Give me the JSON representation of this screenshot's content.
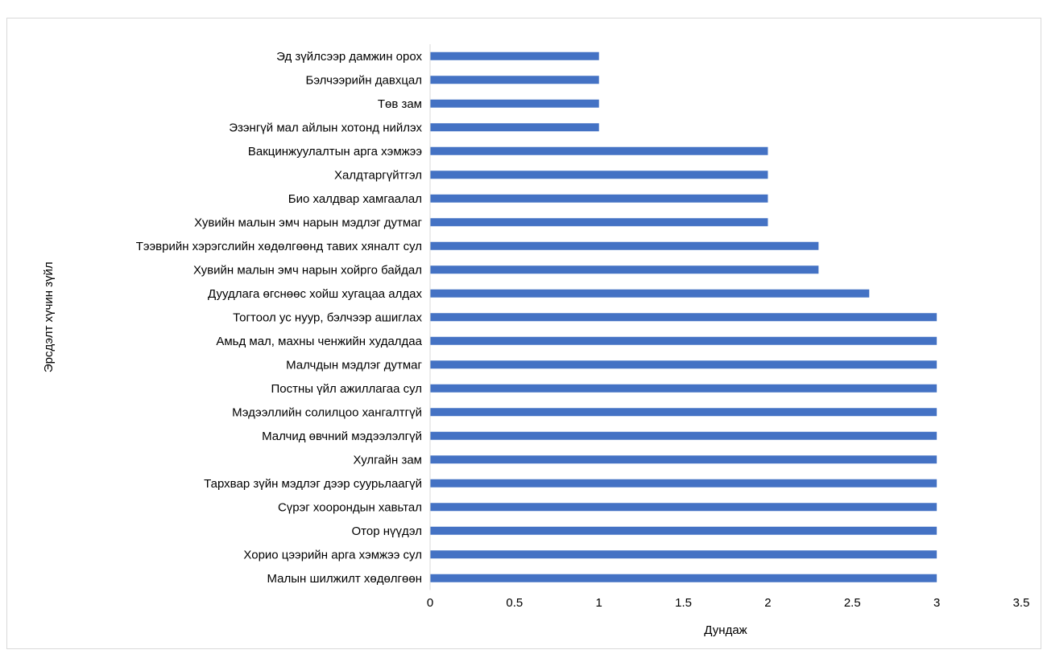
{
  "chart_data": {
    "type": "bar",
    "orientation": "horizontal",
    "title": "",
    "xlabel": "Дундаж",
    "ylabel": "Эрсдэлт хүчин зүйл",
    "xlim": [
      0,
      3.5
    ],
    "x_ticks": [
      "0",
      "0.5",
      "1",
      "1.5",
      "2",
      "2.5",
      "3",
      "3.5"
    ],
    "grid": false,
    "legend": "none",
    "bar_color": "#4472c4",
    "categories": [
      "Малын шилжилт хөдөлгөөн",
      "Хорио цээрийн арга хэмжээ сул",
      "Отор нүүдэл",
      "Сүрэг хоорондын хавьтал",
      "Тархвар зүйн мэдлэг дээр суурьлаагүй",
      "Хулгайн зам",
      "Малчид өвчний мэдээлэлгүй",
      "Мэдээллийн солилцоо хангалтгүй",
      "Постны үйл ажиллагаа сул",
      "Малчдын мэдлэг дутмаг",
      "Амьд мал, махны ченжийн худалдаа",
      "Тогтоол ус нуур, бэлчээр ашиглах",
      "Дуудлага өгснөөс хойш хугацаа алдах",
      "Хувийн малын эмч нарын хойрго байдал",
      "Тээврийн хэрэгслийн хөдөлгөөнд тавих хяналт сул",
      "Хувийн малын эмч нарын мэдлэг дутмаг",
      "Био халдвар хамгаалал",
      "Халдтаргүйтгэл",
      "Вакцинжуулалтын арга хэмжээ",
      "Эзэнгүй мал айлын хотонд нийлэх",
      "Төв зам",
      "Бэлчээрийн давхцал",
      "Эд зүйлсээр дамжин орох"
    ],
    "values": [
      3,
      3,
      3,
      3,
      3,
      3,
      3,
      3,
      3,
      3,
      3,
      3,
      2.6,
      2.3,
      2.3,
      2,
      2,
      2,
      2,
      1,
      1,
      1,
      1
    ]
  }
}
